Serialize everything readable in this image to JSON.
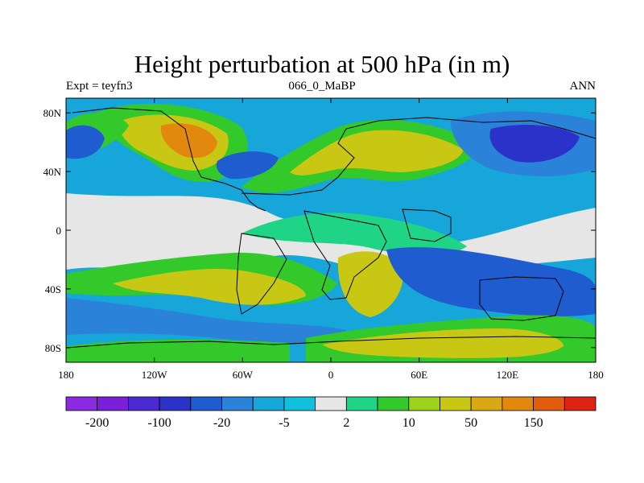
{
  "title": "Height perturbation at 500 hPa (in m)",
  "left_subtitle": "Expt = teyfn3",
  "center_subtitle": "066_0_MaBP",
  "right_subtitle": "ANN",
  "map": {
    "projection": "cylindrical equidistant",
    "lon_range": [
      -180,
      180
    ],
    "lat_range": [
      -90,
      90
    ],
    "x_ticks": [
      "180",
      "120W",
      "60W",
      "0",
      "60E",
      "120E",
      "180"
    ],
    "y_ticks": [
      "80N",
      "40N",
      "0",
      "40S",
      "80S"
    ],
    "coastlines": "blocky continental outlines"
  },
  "colorbar": {
    "colors": [
      "#8a2be2",
      "#7b1fd9",
      "#4b2bd1",
      "#2a32c9",
      "#1e5ccf",
      "#2a82d9",
      "#16a6d9",
      "#10c0dd",
      "#e6e6e6",
      "#1fd487",
      "#33c92b",
      "#9ad21c",
      "#c8c814",
      "#d9a814",
      "#e2880e",
      "#e25c0e",
      "#dd2414"
    ],
    "labels": [
      "-200",
      "-100",
      "-20",
      "-5",
      "2",
      "10",
      "50",
      "150"
    ]
  }
}
